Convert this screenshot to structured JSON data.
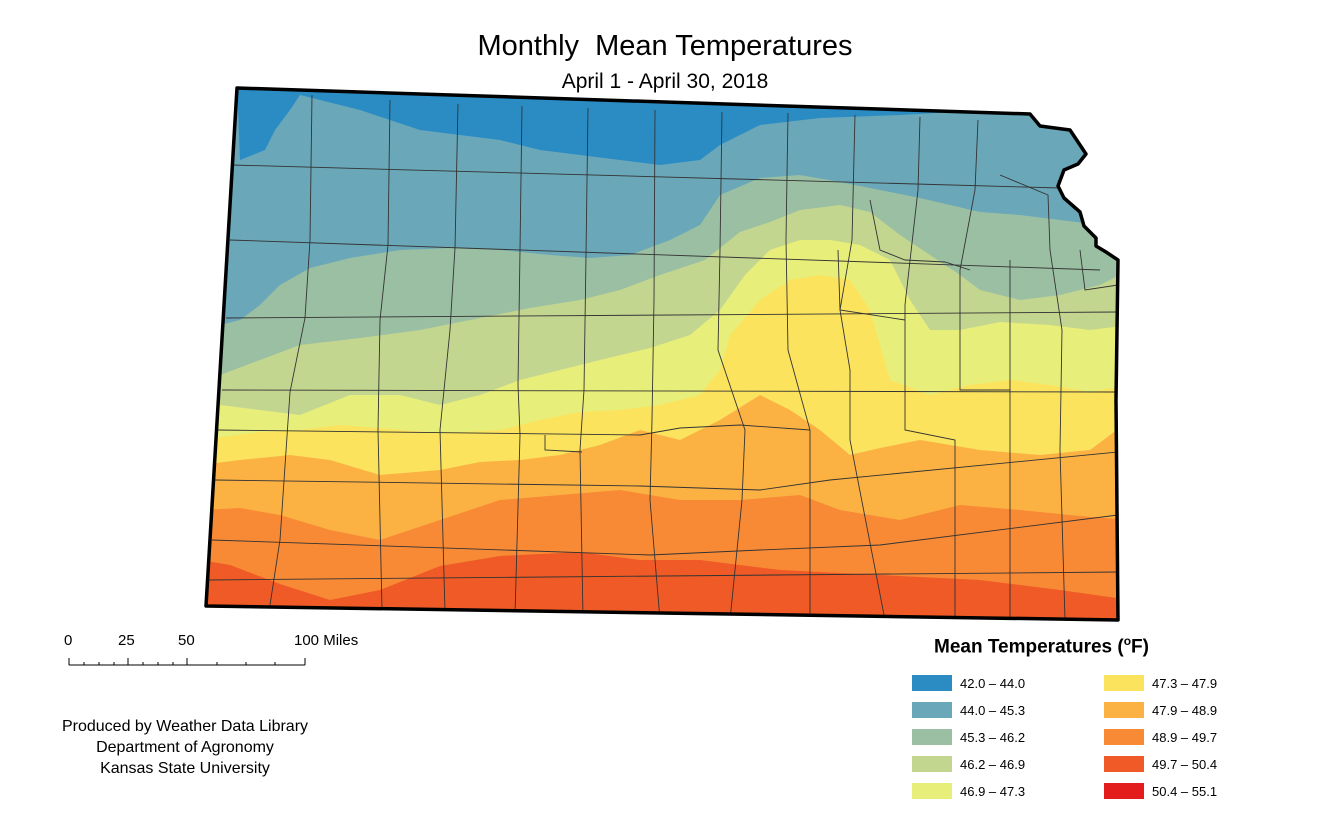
{
  "title": "Monthly  Mean Temperatures",
  "subtitle": "April 1 - April 30, 2018",
  "scale": {
    "ticks": [
      "0",
      "25",
      "50",
      "100 Miles"
    ]
  },
  "credit": {
    "line1": "Produced by Weather Data Library",
    "line2": "Department of Agronomy",
    "line3": "Kansas State University"
  },
  "legend": {
    "title": "Mean Temperatures (",
    "unit_sup": "o",
    "unit_tail": "F)",
    "classes": [
      {
        "label": "42.0 – 44.0",
        "color": "#2b8cc4"
      },
      {
        "label": "44.0 – 45.3",
        "color": "#6aa7b8"
      },
      {
        "label": "45.3 – 46.2",
        "color": "#9bbfa2"
      },
      {
        "label": "46.2 – 46.9",
        "color": "#c3d690"
      },
      {
        "label": "46.9 – 47.3",
        "color": "#e8ee7a"
      },
      {
        "label": "47.3 – 47.9",
        "color": "#fbe35e"
      },
      {
        "label": "47.9 – 48.9",
        "color": "#fbb243"
      },
      {
        "label": "48.9 – 49.7",
        "color": "#f88a36"
      },
      {
        "label": "49.7 – 50.4",
        "color": "#ef5a26"
      },
      {
        "label": "50.4 – 55.1",
        "color": "#e31c1c"
      }
    ]
  }
}
